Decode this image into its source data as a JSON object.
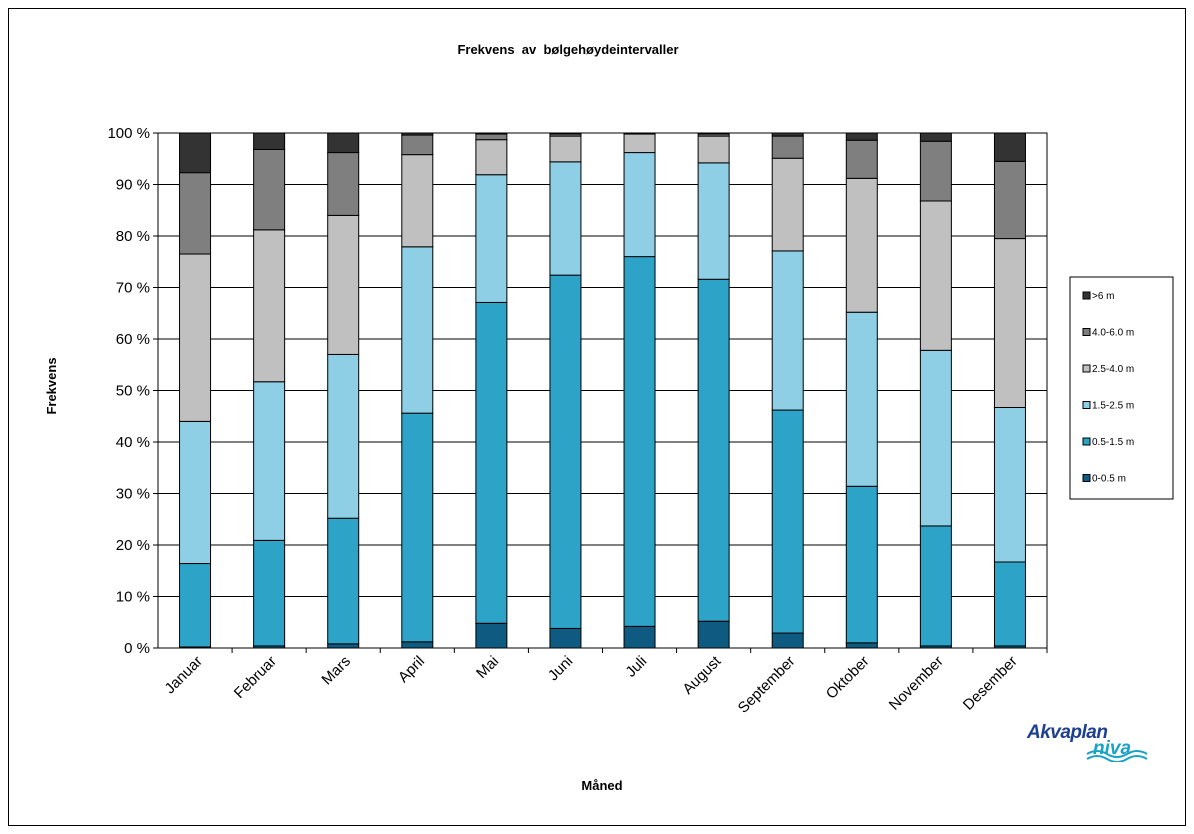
{
  "chart_data": {
    "type": "bar",
    "stacked": true,
    "normalized_percent": true,
    "title": "Frekvens  av  bølgehøydeintervaller",
    "xlabel": "Måned",
    "ylabel": "Frekvens",
    "ylim": [
      0,
      100
    ],
    "yticks": [
      "0 %",
      "10 %",
      "20 %",
      "30 %",
      "40 %",
      "50 %",
      "60 %",
      "70 %",
      "80 %",
      "90 %",
      "100 %"
    ],
    "grid": true,
    "legend_position": "right",
    "categories": [
      "Januar",
      "Februar",
      "Mars",
      "April",
      "Mai",
      "Juni",
      "Juli",
      "August",
      "September",
      "Oktober",
      "November",
      "Desember"
    ],
    "series": [
      {
        "name": "0-0.5 m",
        "color": "#0e5a80",
        "values": [
          0.2,
          0.4,
          0.8,
          1.2,
          4.8,
          3.8,
          4.2,
          5.2,
          2.9,
          1.0,
          0.4,
          0.4
        ]
      },
      {
        "name": "0.5-1.5 m",
        "color": "#2ea3c8",
        "values": [
          16.2,
          20.5,
          24.4,
          44.4,
          62.3,
          68.6,
          71.8,
          66.4,
          43.3,
          30.4,
          23.3,
          16.3
        ]
      },
      {
        "name": "1.5-2.5 m",
        "color": "#8ecfe6",
        "values": [
          27.6,
          30.8,
          31.8,
          32.3,
          24.8,
          22.0,
          20.2,
          22.6,
          30.9,
          33.8,
          34.1,
          30.0
        ]
      },
      {
        "name": "2.5-4.0 m",
        "color": "#c0c0c0",
        "values": [
          32.5,
          29.5,
          27.0,
          17.9,
          6.8,
          5.0,
          3.6,
          5.2,
          18.0,
          26.0,
          29.0,
          32.8
        ]
      },
      {
        "name": "4.0-6.0 m",
        "color": "#7f7f7f",
        "values": [
          15.8,
          15.6,
          12.2,
          3.8,
          1.1,
          0.4,
          0.1,
          0.4,
          4.3,
          7.4,
          11.6,
          15.0
        ]
      },
      {
        "name": ">6 m",
        "color": "#333333",
        "values": [
          7.7,
          3.2,
          3.8,
          0.4,
          0.2,
          0.2,
          0.1,
          0.2,
          0.6,
          1.4,
          1.6,
          5.5
        ]
      }
    ]
  },
  "logo": {
    "main": "Akvaplan",
    "sub": "niva"
  }
}
